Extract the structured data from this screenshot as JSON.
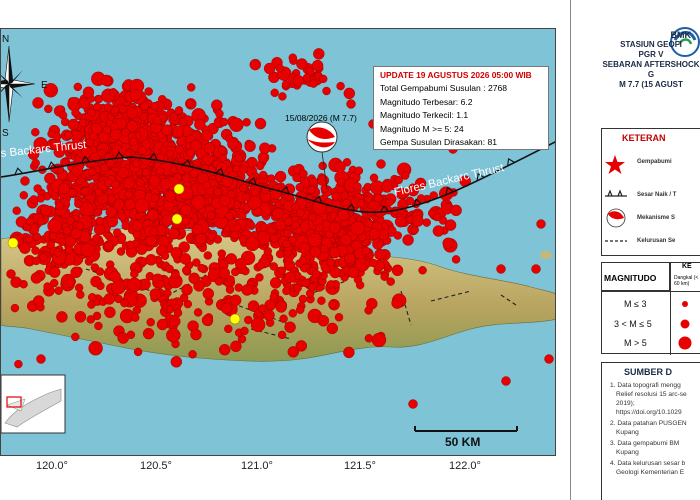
{
  "info_box": {
    "title": "UPDATE 19 AGUSTUS 2026 05:00 WIB",
    "lines": [
      "Total Gempabumi Susulan : 2768",
      "Magnitudo Terbesar: 6.2",
      "Magnitudo Terkecil: 1.1",
      "Magnitudo M >= 5: 24",
      "Gempa Susulan Dirasakan: 81"
    ]
  },
  "map": {
    "mainshock_label": "15/08/2026 (M 7.7)",
    "thrust_left_label": "s Backarc Thrust",
    "thrust_right_label": "Flores Backarc Thrust",
    "scale_label": "50 KM",
    "compass": {
      "north": "N",
      "east": "E",
      "south": "S"
    },
    "colors": {
      "sea": "#7ec3d6",
      "land": "#c9b77a",
      "event": "#e60000",
      "felt": "#ffff00"
    }
  },
  "longitudes": [
    "120.0°",
    "120.5°",
    "121.0°",
    "121.5°",
    "122.0°"
  ],
  "legend": {
    "agency": "BMK",
    "station": "STASIUN GEOFI",
    "station2": "PGR V",
    "subtitle1": "SEBARAN AFTERSHOCK G",
    "subtitle2": "M 7.7 (15 AGUST",
    "keterangan": "KETERAN",
    "items": [
      "Gempabumi",
      "Sesar Naik / T",
      "Mekanisme S",
      "Kelurusan Se"
    ],
    "magnitudo_header": "MAGNITUDO",
    "magnitudo_col": "KE",
    "depth_col": "Dangkal (< 60 km)",
    "mag_rows": [
      "M ≤ 3",
      "3 < M ≤ 5",
      "M > 5"
    ],
    "sumber": "SUMBER D",
    "sources": [
      "1. Data topografi mengg",
      "Relief resolusi 15 arc-se",
      "2019);",
      "https://doi.org/10.1029",
      "2. Data patahan PUSGEN",
      "Kupang",
      "3. Data gempabumi BM",
      "Kupang",
      "4. Data kelurusan sesar b",
      "Geologi Kementerian E"
    ]
  }
}
